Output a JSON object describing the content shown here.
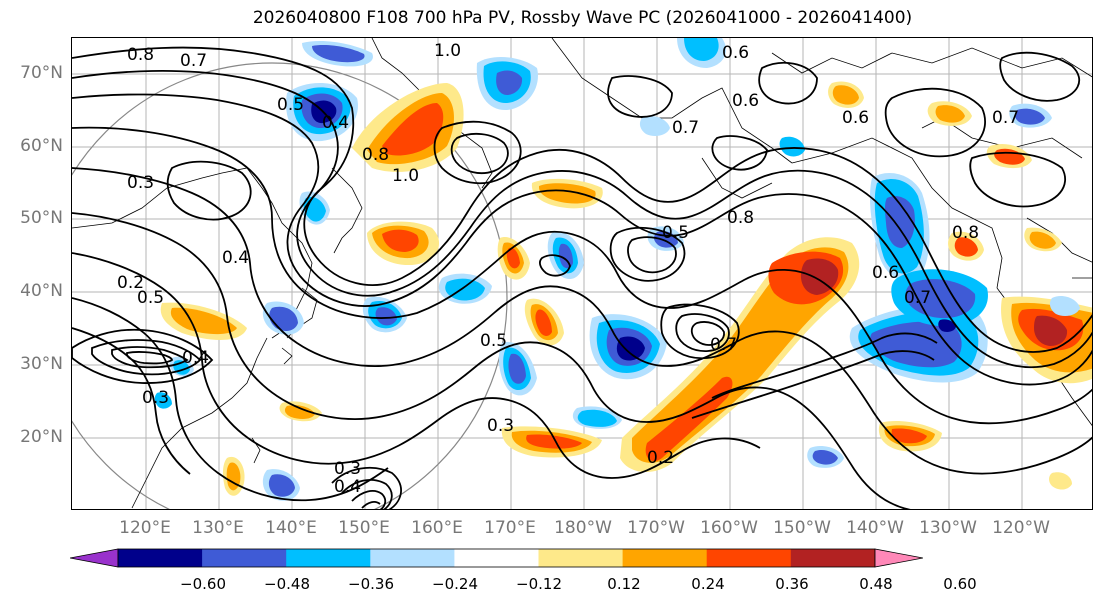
{
  "title": "2026040800 F108 700 hPa PV, Rossby Wave PC (2026041000 - 2026041400)",
  "map": {
    "lat_labels": [
      "70°N",
      "60°N",
      "50°N",
      "40°N",
      "30°N",
      "20°N"
    ],
    "lon_labels": [
      "120°E",
      "130°E",
      "140°E",
      "150°E",
      "160°E",
      "170°E",
      "180°W",
      "170°W",
      "160°W",
      "150°W",
      "140°W",
      "130°W",
      "120°W"
    ],
    "contour_labels": [
      "0.8",
      "0.7",
      "1.0",
      "0.5",
      "0.4",
      "0.6",
      "0.8",
      "0.3",
      "1.0",
      "0.4",
      "0.5",
      "0.2",
      "0.3",
      "0.6",
      "0.7",
      "0.5",
      "0.2",
      "0.3",
      "0.4",
      "0.3",
      "0.4",
      "0.5",
      "0.7",
      "0.8",
      "0.6",
      "0.7",
      "0.8",
      "0.7",
      "0.6"
    ],
    "colors": {
      "positive": [
        "#fee98a",
        "#ffa500",
        "#ff4500",
        "#b22222",
        "#ff88b8"
      ],
      "negative": [
        "#b3e0ff",
        "#00bfff",
        "#3f5bd6",
        "#00008b",
        "#9932cc"
      ]
    }
  },
  "colorbar": {
    "ticks": [
      "−0.60",
      "−0.48",
      "−0.36",
      "−0.24",
      "−0.12",
      "0.12",
      "0.24",
      "0.36",
      "0.48",
      "0.60"
    ],
    "colors": [
      "#9932cc",
      "#00008b",
      "#3f5bd6",
      "#00bfff",
      "#b3e0ff",
      "#ffffff",
      "#fee98a",
      "#ffa500",
      "#ff4500",
      "#b22222",
      "#ff88b8"
    ]
  }
}
